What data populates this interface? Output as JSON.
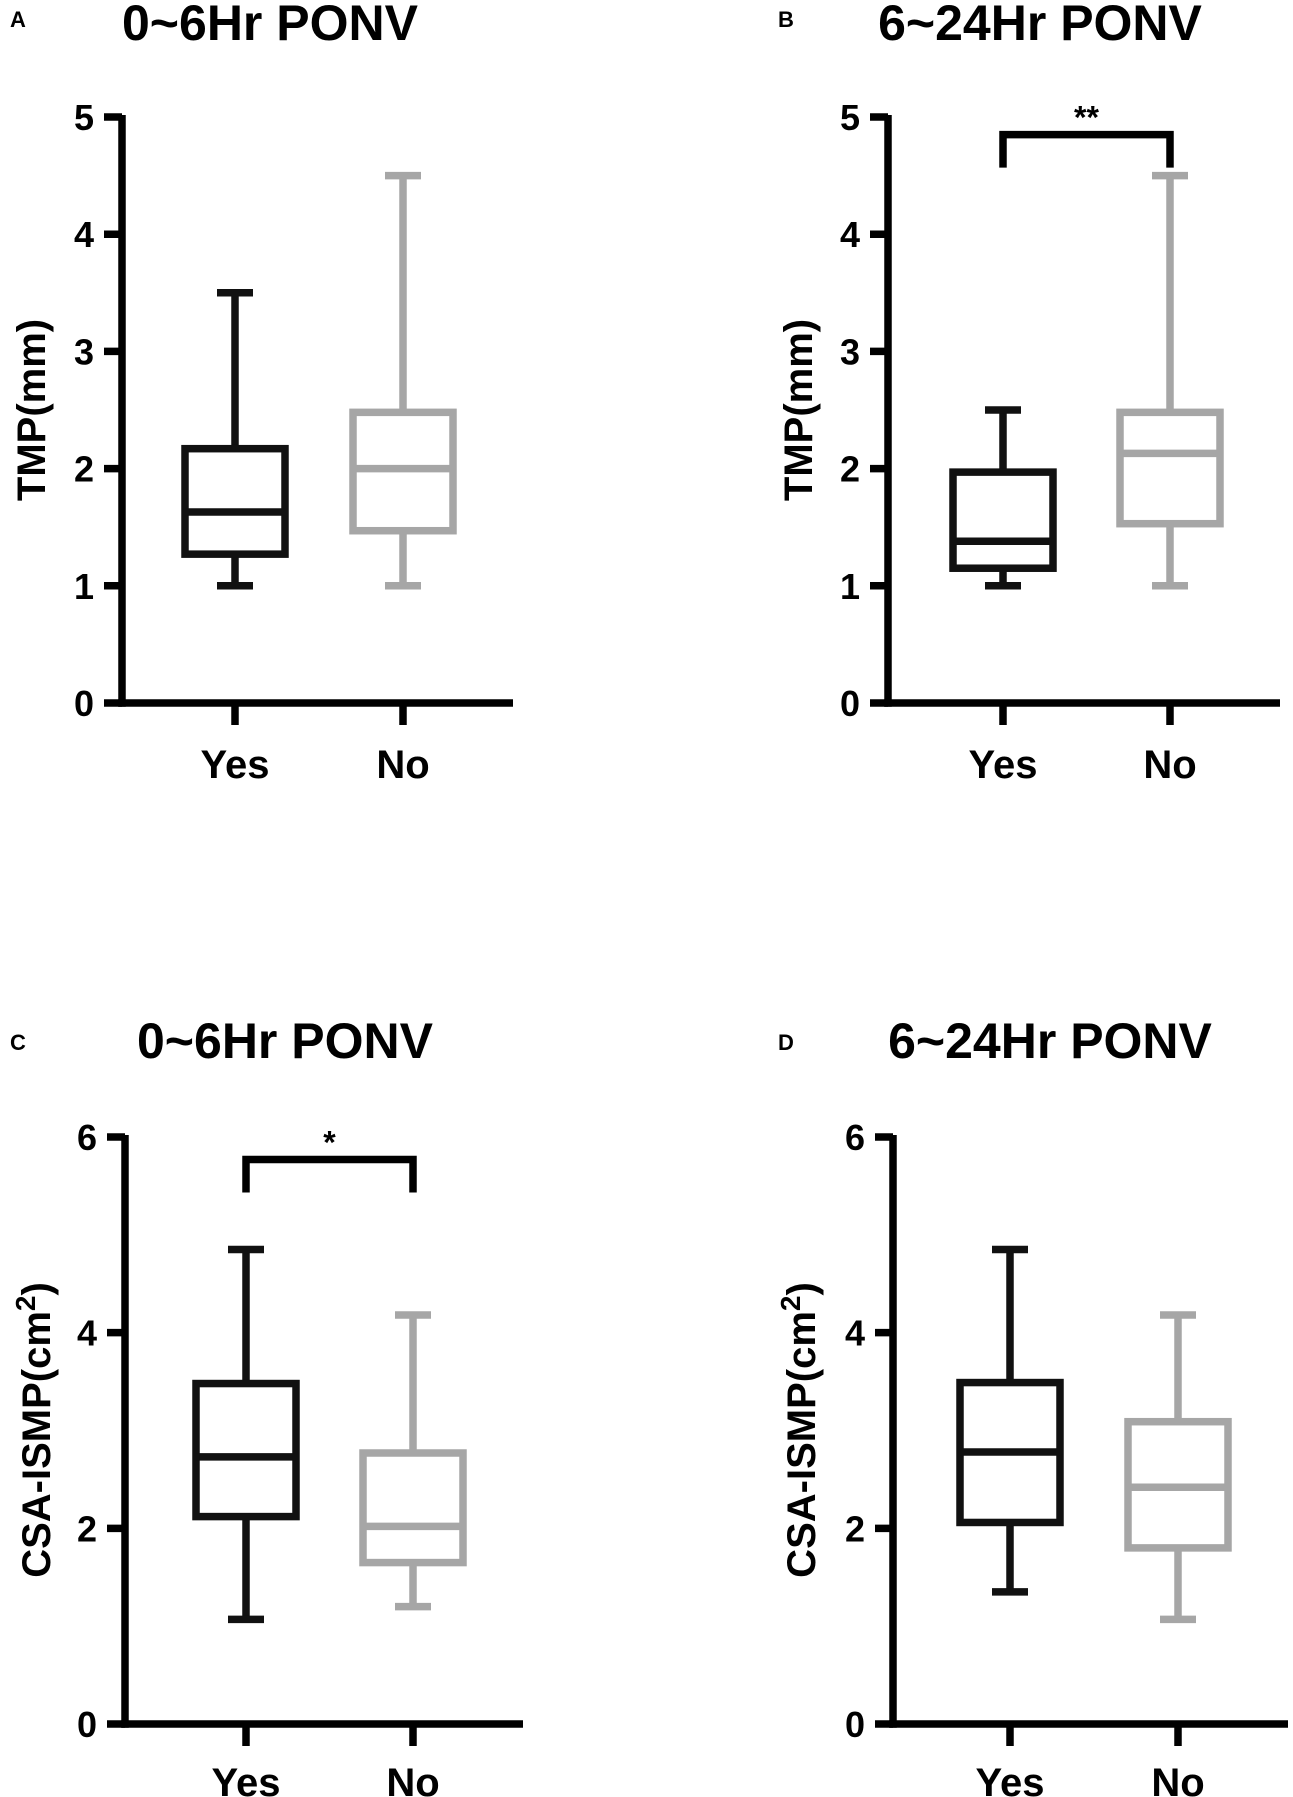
{
  "colors": {
    "yes": "#111111",
    "no": "#a6a6a6",
    "axis": "#000000"
  },
  "chart_data": [
    {
      "panel": "A",
      "type": "boxplot",
      "title": "0~6Hr PONV",
      "ylabel": "TMP(mm)",
      "ylabel_sup": "",
      "ylabel_end": "",
      "ylim": [
        0,
        5
      ],
      "yticks": [
        0,
        1,
        2,
        3,
        4,
        5
      ],
      "categories": [
        "Yes",
        "No"
      ],
      "series": [
        {
          "name": "Yes",
          "min": 1.0,
          "q1": 1.27,
          "median": 1.63,
          "q3": 2.17,
          "max": 3.5
        },
        {
          "name": "No",
          "min": 1.0,
          "q1": 1.47,
          "median": 2.0,
          "q3": 2.48,
          "max": 4.5
        }
      ],
      "significance": null
    },
    {
      "panel": "B",
      "type": "boxplot",
      "title": "6~24Hr PONV",
      "ylabel": "TMP(mm)",
      "ylabel_sup": "",
      "ylabel_end": "",
      "ylim": [
        0,
        5
      ],
      "yticks": [
        0,
        1,
        2,
        3,
        4,
        5
      ],
      "categories": [
        "Yes",
        "No"
      ],
      "series": [
        {
          "name": "Yes",
          "min": 1.0,
          "q1": 1.15,
          "median": 1.38,
          "q3": 1.97,
          "max": 2.5
        },
        {
          "name": "No",
          "min": 1.0,
          "q1": 1.53,
          "median": 2.13,
          "q3": 2.48,
          "max": 4.5
        }
      ],
      "significance": {
        "label": "**",
        "y": 4.85
      }
    },
    {
      "panel": "C",
      "type": "boxplot",
      "title": "0~6Hr PONV",
      "ylabel": "CSA-ISMP(cm",
      "ylabel_sup": "2",
      "ylabel_end": ")",
      "ylim": [
        0,
        6
      ],
      "yticks": [
        0,
        2,
        4,
        6
      ],
      "categories": [
        "Yes",
        "No"
      ],
      "series": [
        {
          "name": "Yes",
          "min": 1.07,
          "q1": 2.12,
          "median": 2.73,
          "q3": 3.48,
          "max": 4.85
        },
        {
          "name": "No",
          "min": 1.2,
          "q1": 1.65,
          "median": 2.02,
          "q3": 2.77,
          "max": 4.18
        }
      ],
      "significance": {
        "label": "*",
        "y": 5.77
      }
    },
    {
      "panel": "D",
      "type": "boxplot",
      "title": "6~24Hr PONV",
      "ylabel": "CSA-ISMP(cm",
      "ylabel_sup": "2",
      "ylabel_end": ")",
      "ylim": [
        0,
        6
      ],
      "yticks": [
        0,
        2,
        4,
        6
      ],
      "categories": [
        "Yes",
        "No"
      ],
      "series": [
        {
          "name": "Yes",
          "min": 1.35,
          "q1": 2.06,
          "median": 2.78,
          "q3": 3.49,
          "max": 4.85
        },
        {
          "name": "No",
          "min": 1.07,
          "q1": 1.8,
          "median": 2.42,
          "q3": 3.09,
          "max": 4.18
        }
      ],
      "significance": null
    }
  ]
}
